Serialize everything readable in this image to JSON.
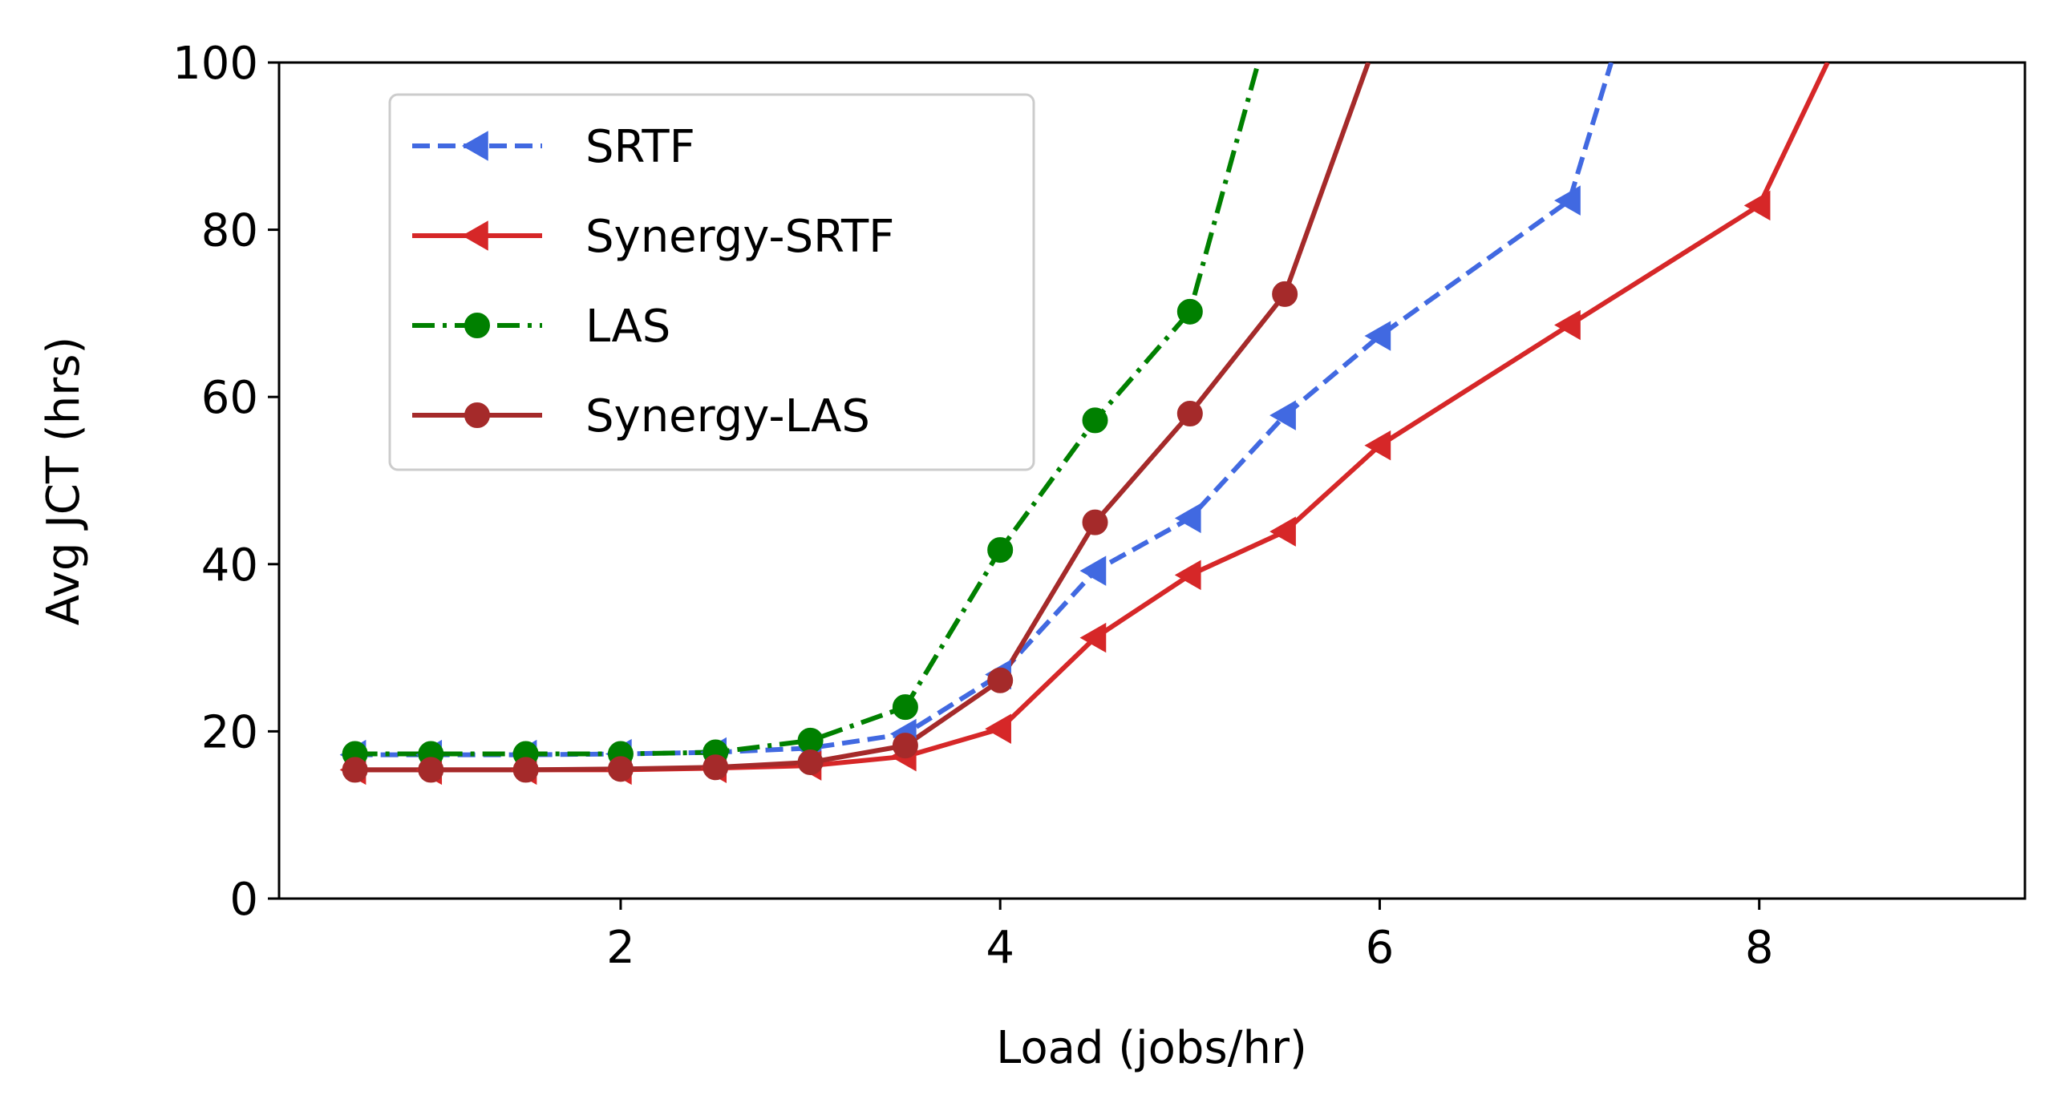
{
  "chart_data": {
    "type": "line",
    "title": "",
    "xlabel": "Load (jobs/hr)",
    "ylabel": "Avg JCT (hrs)",
    "xlim": [
      0.2,
      9.4
    ],
    "ylim": [
      0,
      100
    ],
    "xticks": [
      2,
      4,
      6,
      8
    ],
    "yticks": [
      0,
      20,
      40,
      60,
      80,
      100
    ],
    "legend_position": "top-left",
    "grid": false,
    "series": [
      {
        "name": "SRTF",
        "color": "#4169e1",
        "linestyle": "dashed",
        "marker": "triangle-left",
        "x": [
          0.6,
          1.0,
          1.5,
          2.0,
          2.5,
          3.0,
          3.5,
          4.0,
          4.5,
          5.0,
          5.5,
          6.0,
          7.0,
          7.22
        ],
        "y": [
          17.2,
          17.2,
          17.2,
          17.3,
          17.5,
          18.0,
          19.7,
          26.8,
          39.2,
          45.5,
          57.8,
          67.3,
          83.5,
          100
        ]
      },
      {
        "name": "Synergy-SRTF",
        "color": "#d62728",
        "linestyle": "solid",
        "marker": "triangle-left",
        "x": [
          0.6,
          1.0,
          1.5,
          2.0,
          2.5,
          3.0,
          3.5,
          4.0,
          4.5,
          5.0,
          5.5,
          6.0,
          7.0,
          8.0,
          8.36
        ],
        "y": [
          15.4,
          15.4,
          15.4,
          15.4,
          15.6,
          15.9,
          17.0,
          20.3,
          31.2,
          38.7,
          43.9,
          54.2,
          68.6,
          82.9,
          100
        ]
      },
      {
        "name": "LAS",
        "color": "#008000",
        "linestyle": "dashdot",
        "marker": "circle",
        "x": [
          0.6,
          1.0,
          1.5,
          2.0,
          2.5,
          3.0,
          3.5,
          4.0,
          4.5,
          5.0,
          5.36
        ],
        "y": [
          17.3,
          17.3,
          17.3,
          17.3,
          17.5,
          18.9,
          22.9,
          41.7,
          57.2,
          70.2,
          100
        ]
      },
      {
        "name": "Synergy-LAS",
        "color": "#a52a2a",
        "linestyle": "solid",
        "marker": "circle",
        "x": [
          0.6,
          1.0,
          1.5,
          2.0,
          2.5,
          3.0,
          3.5,
          4.0,
          4.5,
          5.0,
          5.5,
          5.94
        ],
        "y": [
          15.4,
          15.4,
          15.4,
          15.5,
          15.7,
          16.3,
          18.3,
          26.1,
          45.0,
          58.0,
          72.3,
          100
        ]
      }
    ]
  }
}
